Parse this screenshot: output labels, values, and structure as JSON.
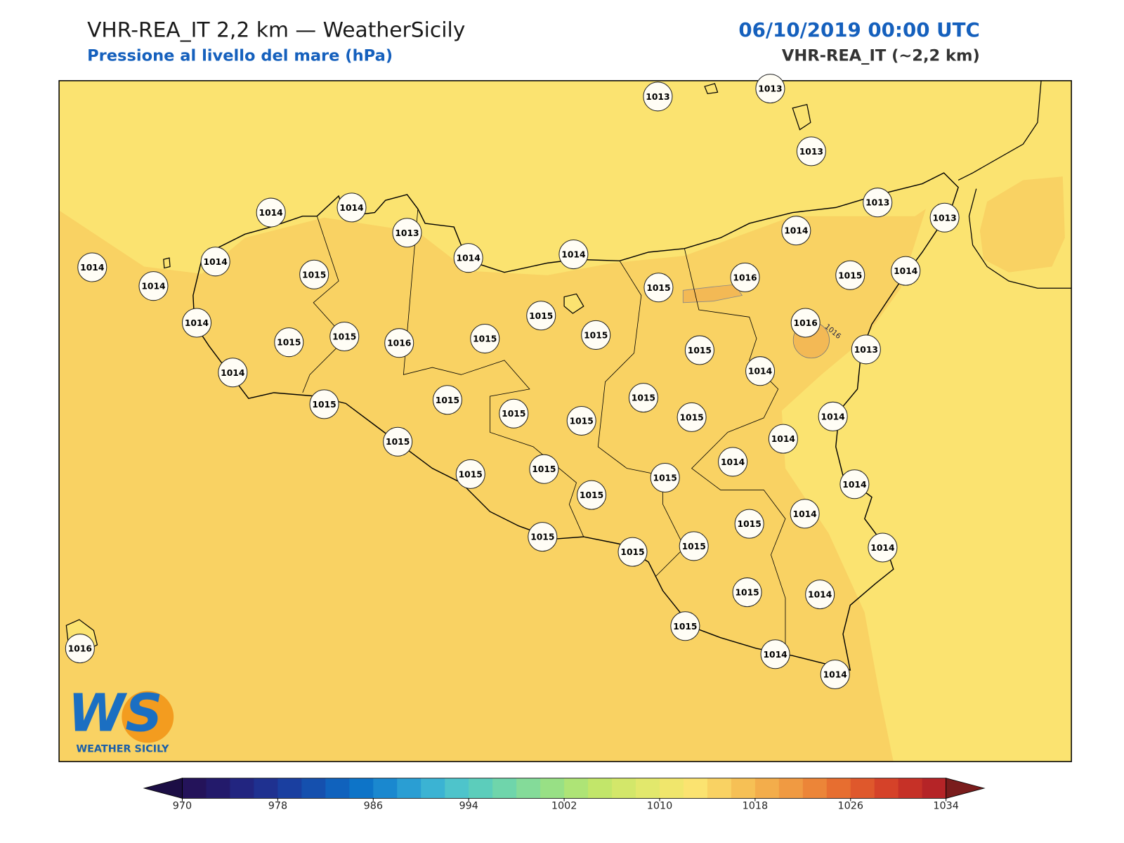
{
  "header": {
    "title": "VHR-REA_IT 2,2 km — WeatherSicily",
    "subtitle": "Pressione al livello del mare (hPa)",
    "date": "06/10/2019 00:00 UTC",
    "model": "VHR-REA_IT (~2,2 km)"
  },
  "map": {
    "stations": [
      1013,
      1013,
      1013,
      1014,
      1014,
      1013,
      1014,
      1014,
      1013,
      1013,
      1014,
      1014,
      1014,
      1014,
      1015,
      1015,
      1016,
      1015,
      1014,
      1015,
      1015,
      1014,
      1015,
      1015,
      1016,
      1015,
      1015,
      1016,
      1013,
      1014,
      1014,
      1015,
      1015,
      1015,
      1015,
      1015,
      1015,
      1014,
      1015,
      1014,
      1014,
      1015,
      1015,
      1015,
      1015,
      1014,
      1015,
      1014,
      1015,
      1015,
      1015,
      1014,
      1015,
      1014,
      1015,
      1014,
      1014,
      1016
    ],
    "contour_label": "1016"
  },
  "logo": {
    "mark": "WS",
    "text": "WEATHER SICILY"
  },
  "colorbar": {
    "lim": [
      970,
      1034
    ],
    "ticks": [
      970,
      978,
      986,
      994,
      1002,
      1010,
      1018,
      1026,
      1034
    ],
    "colors": [
      "#24135a",
      "#231a6b",
      "#222580",
      "#1f3190",
      "#1a3fa0",
      "#1550ae",
      "#1062bd",
      "#0d74c8",
      "#1a88cf",
      "#2a9ed3",
      "#3bb3d3",
      "#4ec4cb",
      "#5ccdbb",
      "#6fd5ab",
      "#84db99",
      "#98e085",
      "#aee476",
      "#c2e66a",
      "#d3e76a",
      "#e2e86c",
      "#f0e66c",
      "#fbe370",
      "#f9d263",
      "#f6c055",
      "#f3ad4b",
      "#f09a42",
      "#ec8538",
      "#e76e30",
      "#df582c",
      "#d54229",
      "#c63127",
      "#b52427"
    ],
    "under": "#1c0e45",
    "over": "#7a1c1c"
  }
}
